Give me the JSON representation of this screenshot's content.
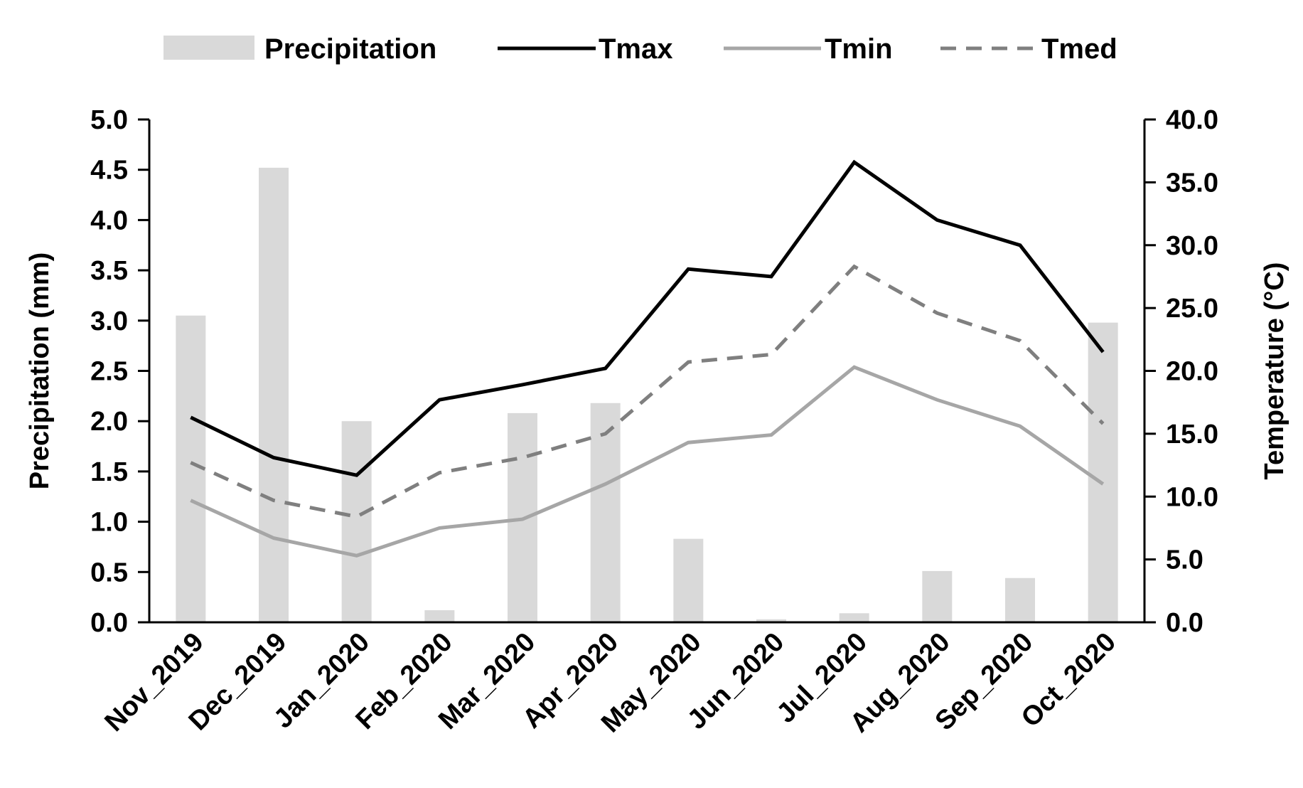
{
  "chart_data": {
    "type": "bar+line",
    "categories": [
      "Nov_2019",
      "Dec_2019",
      "Jan_2020",
      "Feb_2020",
      "Mar_2020",
      "Apr_2020",
      "May_2020",
      "Jun_2020",
      "Jul_2020",
      "Aug_2020",
      "Sep_2020",
      "Oct_2020"
    ],
    "bar_series": {
      "name": "Precipitation",
      "axis": "left",
      "color": "#d9d9d9",
      "values": [
        3.05,
        4.52,
        2.0,
        0.12,
        2.08,
        2.18,
        0.83,
        0.03,
        0.09,
        0.51,
        0.44,
        2.98
      ]
    },
    "line_series": [
      {
        "name": "Tmax",
        "axis": "right",
        "color": "#000000",
        "style": "solid",
        "values": [
          16.3,
          13.1,
          11.7,
          17.7,
          18.9,
          20.2,
          28.1,
          27.5,
          36.6,
          32.0,
          30.0,
          21.5
        ]
      },
      {
        "name": "Tmin",
        "axis": "right",
        "color": "#a6a6a6",
        "style": "solid",
        "values": [
          9.7,
          6.7,
          5.3,
          7.5,
          8.2,
          11.0,
          14.3,
          14.9,
          20.3,
          17.7,
          15.6,
          11.0
        ]
      },
      {
        "name": "Tmed",
        "axis": "right",
        "color": "#7f7f7f",
        "style": "dashed",
        "values": [
          12.7,
          9.7,
          8.4,
          11.9,
          13.1,
          15.0,
          20.7,
          21.3,
          28.3,
          24.6,
          22.4,
          15.8
        ]
      }
    ],
    "left_axis": {
      "label": "Precipitation (mm)",
      "ylim": [
        0,
        5
      ],
      "ticks": [
        "0.0",
        "0.5",
        "1.0",
        "1.5",
        "2.0",
        "2.5",
        "3.0",
        "3.5",
        "4.0",
        "4.5",
        "5.0"
      ]
    },
    "right_axis": {
      "label": "Temperature (°C)",
      "ylim": [
        0,
        40
      ],
      "ticks": [
        "0.0",
        "5.0",
        "10.0",
        "15.0",
        "20.0",
        "25.0",
        "30.0",
        "35.0",
        "40.0"
      ]
    },
    "legend": {
      "placement": "top",
      "entries": [
        "Precipitation",
        "Tmax",
        "Tmin",
        "Tmed"
      ]
    },
    "grid": false
  }
}
